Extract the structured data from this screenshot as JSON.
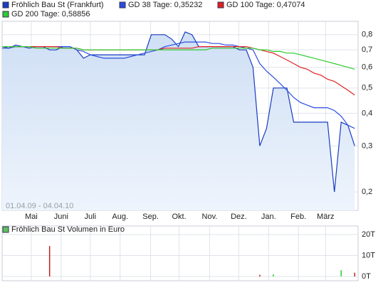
{
  "chart_data": {
    "type": "line",
    "log_scale": true,
    "grid": true,
    "date_range": "01.04.09 - 04.04.10",
    "xlim": [
      0,
      52.5
    ],
    "xticks": [
      {
        "value": 4.3,
        "label": "Mai"
      },
      {
        "value": 8.7,
        "label": "Juni"
      },
      {
        "value": 13,
        "label": "Juli"
      },
      {
        "value": 17.4,
        "label": "Aug."
      },
      {
        "value": 21.9,
        "label": "Sep."
      },
      {
        "value": 26.1,
        "label": "Okt."
      },
      {
        "value": 30.6,
        "label": "Nov."
      },
      {
        "value": 34.9,
        "label": "Dez."
      },
      {
        "value": 39.3,
        "label": "Jan."
      },
      {
        "value": 43.7,
        "label": "Feb."
      },
      {
        "value": 47.7,
        "label": "März"
      }
    ],
    "ylim": [
      0.17,
      0.9
    ],
    "yticks": [
      {
        "value": 0.2,
        "label": "0,2"
      },
      {
        "value": 0.3,
        "label": "0,3"
      },
      {
        "value": 0.4,
        "label": "0,4"
      },
      {
        "value": 0.5,
        "label": "0,5"
      },
      {
        "value": 0.6,
        "label": "0,6"
      },
      {
        "value": 0.7,
        "label": "0,7"
      },
      {
        "value": 0.8,
        "label": "0,8"
      }
    ],
    "series": [
      {
        "name": "Fröhlich Bau St (Frankfurt)",
        "color": "#1a3cc0",
        "area_color": "#d4e2f6",
        "values": [
          0.72,
          0.71,
          0.73,
          0.72,
          0.71,
          0.72,
          0.72,
          0.7,
          0.7,
          0.72,
          0.72,
          0.7,
          0.65,
          0.67,
          0.67,
          0.67,
          0.67,
          0.67,
          0.67,
          0.67,
          0.67,
          0.67,
          0.8,
          0.8,
          0.8,
          0.77,
          0.72,
          0.82,
          0.8,
          0.72,
          0.72,
          0.72,
          0.72,
          0.72,
          0.72,
          0.7,
          0.7,
          0.6,
          0.3,
          0.35,
          0.5,
          0.5,
          0.5,
          0.37,
          0.37,
          0.37,
          0.37,
          0.37,
          0.37,
          0.2,
          0.37,
          0.36,
          0.3
        ]
      },
      {
        "name": "GD 38 Tage: 0,35232",
        "color": "#2a4de0",
        "values": [
          0.71,
          0.71,
          0.72,
          0.72,
          0.72,
          0.72,
          0.72,
          0.72,
          0.72,
          0.72,
          0.72,
          0.7,
          0.69,
          0.67,
          0.66,
          0.65,
          0.65,
          0.65,
          0.65,
          0.66,
          0.67,
          0.68,
          0.69,
          0.7,
          0.72,
          0.73,
          0.74,
          0.75,
          0.75,
          0.75,
          0.75,
          0.74,
          0.74,
          0.73,
          0.73,
          0.72,
          0.71,
          0.7,
          0.62,
          0.58,
          0.55,
          0.52,
          0.49,
          0.46,
          0.44,
          0.43,
          0.42,
          0.42,
          0.42,
          0.41,
          0.39,
          0.36,
          0.35
        ]
      },
      {
        "name": "GD 100 Tage: 0,47074",
        "color": "#e02020",
        "values": [
          0.72,
          0.72,
          0.72,
          0.72,
          0.72,
          0.72,
          0.72,
          0.72,
          0.72,
          0.71,
          0.71,
          0.71,
          0.7,
          0.7,
          0.7,
          0.7,
          0.7,
          0.7,
          0.7,
          0.7,
          0.7,
          0.7,
          0.7,
          0.7,
          0.71,
          0.71,
          0.71,
          0.71,
          0.71,
          0.72,
          0.72,
          0.72,
          0.72,
          0.72,
          0.72,
          0.72,
          0.72,
          0.71,
          0.7,
          0.69,
          0.68,
          0.66,
          0.64,
          0.62,
          0.6,
          0.59,
          0.57,
          0.56,
          0.54,
          0.53,
          0.51,
          0.49,
          0.47
        ]
      },
      {
        "name": "GD 200 Tage: 0,58856",
        "color": "#2ecc2e",
        "values": [
          0.72,
          0.72,
          0.72,
          0.72,
          0.72,
          0.71,
          0.71,
          0.71,
          0.71,
          0.71,
          0.71,
          0.71,
          0.7,
          0.7,
          0.7,
          0.7,
          0.7,
          0.7,
          0.7,
          0.7,
          0.7,
          0.7,
          0.7,
          0.7,
          0.7,
          0.7,
          0.7,
          0.7,
          0.7,
          0.7,
          0.7,
          0.71,
          0.71,
          0.71,
          0.71,
          0.71,
          0.71,
          0.71,
          0.7,
          0.7,
          0.69,
          0.69,
          0.68,
          0.68,
          0.67,
          0.66,
          0.65,
          0.64,
          0.63,
          0.62,
          0.61,
          0.6,
          0.59
        ]
      }
    ],
    "volume": {
      "name": "Fröhlich Bau St Volumen in Euro",
      "legend_color": "#5cc25c",
      "up_color": "#2ecc2e",
      "down_color": "#c02020",
      "ylim": [
        0,
        20000
      ],
      "yticks": [
        {
          "value": 0,
          "label": "0T"
        },
        {
          "value": 10000,
          "label": "10T"
        },
        {
          "value": 20000,
          "label": "20T"
        }
      ],
      "values": [
        0,
        0,
        0,
        0,
        0,
        0,
        0,
        14500,
        0,
        0,
        0,
        0,
        0,
        0,
        0,
        0,
        0,
        0,
        0,
        0,
        0,
        0,
        0,
        0,
        0,
        0,
        0,
        0,
        0,
        0,
        0,
        0,
        0,
        0,
        0,
        0,
        0,
        0,
        800,
        0,
        1000,
        0,
        0,
        0,
        0,
        0,
        0,
        0,
        0,
        0,
        3000,
        0,
        1800
      ]
    }
  }
}
